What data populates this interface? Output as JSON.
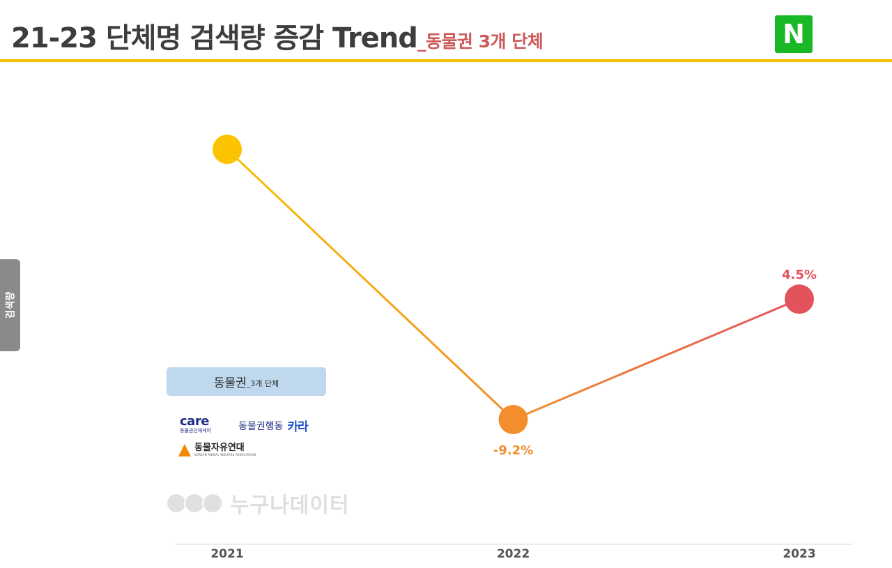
{
  "header": {
    "title": "21-23 단체명 검색량 증감 Trend",
    "subtitle": "_동물권 3개 단체",
    "naver_logo_letter": "N",
    "naver_color": "#19b827",
    "rule_color": "#f9c000"
  },
  "side_tab": {
    "label": "검색량"
  },
  "legend": {
    "main": "동물권",
    "sub": "_3개 단체"
  },
  "org_logos": {
    "care_word": "care",
    "care_sub": "동물권단체케어",
    "kara_name": "동물권행동",
    "kara_mark": "카라",
    "kawa_name": "동물자유연대",
    "kawa_sub": "KOREAN ANIMAL WELFARE ASSOCIATION"
  },
  "watermark": {
    "text": "누구나데이터"
  },
  "chart_data": {
    "type": "line",
    "title": "",
    "xlabel": "",
    "ylabel": "검색량",
    "categories": [
      "2021",
      "2022",
      "2023"
    ],
    "series": [
      {
        "values": [
          100,
          90.8,
          94.9
        ]
      }
    ],
    "data_labels": [
      "",
      "-9.2%",
      "4.5%"
    ],
    "point_colors": [
      "#fbc300",
      "#f28f2c",
      "#e2535b"
    ],
    "line_gradient": [
      "#f9c000",
      "#f28f2c",
      "#e2535b"
    ],
    "label_colors": [
      "#f28f2c",
      "#f28f2c",
      "#e2535b"
    ],
    "ylim": [
      88,
      102
    ],
    "y_axis_visible": false,
    "grid": false
  }
}
